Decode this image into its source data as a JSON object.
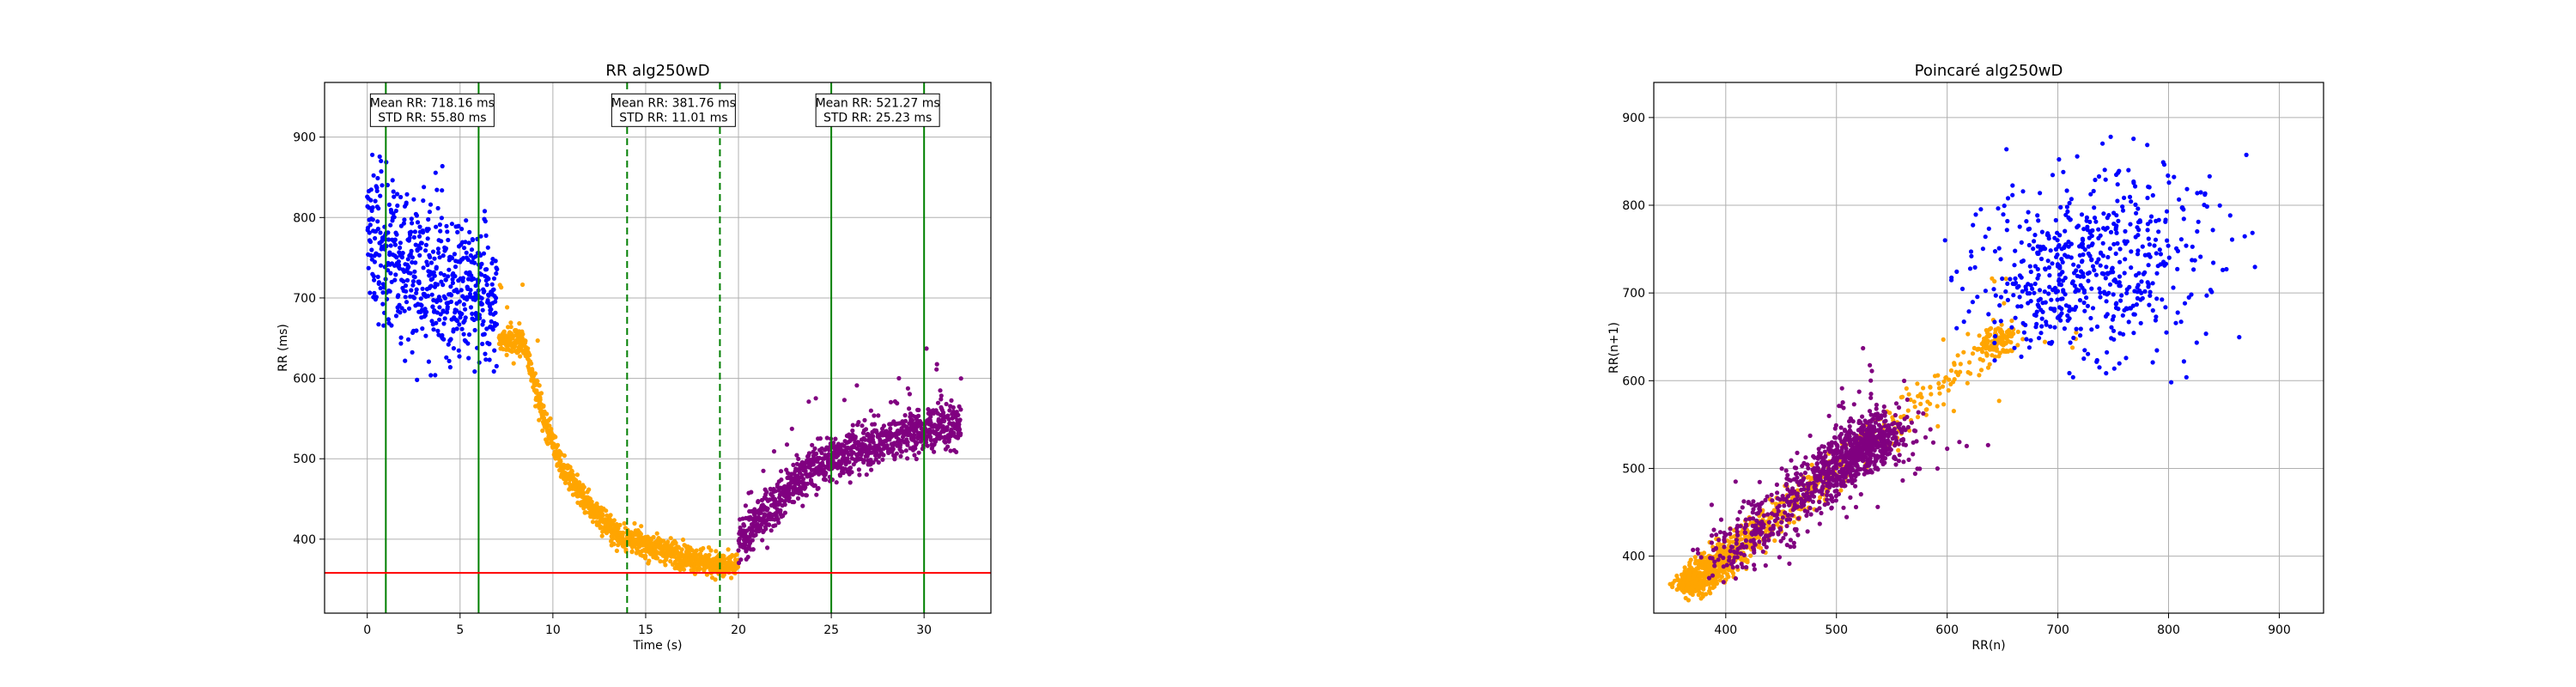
{
  "chart_data": [
    {
      "type": "scatter",
      "title": "RR alg250wD",
      "xlabel": "Time (s)",
      "ylabel": "RR (ms)",
      "xlim": [
        -2.3,
        33.6
      ],
      "ylim": [
        308,
        968
      ],
      "xticks": [
        0,
        5,
        10,
        15,
        20,
        25,
        30
      ],
      "yticks": [
        400,
        500,
        600,
        700,
        800,
        900
      ],
      "grid": true,
      "colors": {
        "segment1": "#0000ff",
        "segment2": "#ffa500",
        "segment3": "#800080",
        "window_solid": "#008000",
        "window_dashed": "#008000",
        "threshold": "#ff0000"
      },
      "series": [
        {
          "segment": "segment1",
          "x_range": [
            0,
            7
          ],
          "trend": [
            [
              0,
              780
            ],
            [
              2,
              740
            ],
            [
              4,
              715
            ],
            [
              7,
              690
            ]
          ],
          "spread": 45
        },
        {
          "segment": "segment2",
          "x_range": [
            7.1,
            20.0
          ],
          "trend": [
            [
              7.1,
              650
            ],
            [
              8.5,
              640
            ],
            [
              9.6,
              545
            ],
            [
              10.5,
              490
            ],
            [
              12,
              440
            ],
            [
              13.5,
              405
            ],
            [
              15,
              393
            ],
            [
              17,
              380
            ],
            [
              18.5,
              370
            ],
            [
              19.5,
              365
            ],
            [
              20,
              368
            ]
          ],
          "spread": 8
        },
        {
          "segment": "segment3",
          "x_range": [
            20.0,
            32.0
          ],
          "trend": [
            [
              20,
              395
            ],
            [
              21,
              420
            ],
            [
              22,
              445
            ],
            [
              23,
              470
            ],
            [
              24,
              488
            ],
            [
              25,
              500
            ],
            [
              26,
              508
            ],
            [
              27,
              515
            ],
            [
              28,
              522
            ],
            [
              29,
              530
            ],
            [
              30,
              535
            ],
            [
              31,
              540
            ],
            [
              32,
              540
            ]
          ],
          "spread": 14
        }
      ],
      "vertical_lines": [
        {
          "x": 1,
          "style": "solid"
        },
        {
          "x": 6,
          "style": "solid"
        },
        {
          "x": 14,
          "style": "dashed"
        },
        {
          "x": 19,
          "style": "dashed"
        },
        {
          "x": 25,
          "style": "solid"
        },
        {
          "x": 30,
          "style": "solid"
        }
      ],
      "hline": 358,
      "annotations": [
        {
          "x": 3.5,
          "y": 910,
          "line1": "Mean RR: 718.16 ms",
          "line2": "STD RR: 55.80 ms"
        },
        {
          "x": 16.5,
          "y": 910,
          "line1": "Mean RR: 381.76 ms",
          "line2": "STD RR: 11.01 ms"
        },
        {
          "x": 27.5,
          "y": 910,
          "line1": "Mean RR: 521.27 ms",
          "line2": "STD RR: 25.23 ms"
        }
      ]
    },
    {
      "type": "scatter",
      "title": "Poincaré alg250wD",
      "xlabel": "RR(n)",
      "ylabel": "RR(n+1)",
      "xlim": [
        335,
        940
      ],
      "ylim": [
        335,
        940
      ],
      "xticks": [
        400,
        500,
        600,
        700,
        800,
        900
      ],
      "yticks": [
        400,
        500,
        600,
        700,
        800,
        900
      ],
      "grid": true,
      "colors": {
        "segment1": "#0000ff",
        "segment2": "#ffa500",
        "segment3": "#800080"
      }
    }
  ]
}
